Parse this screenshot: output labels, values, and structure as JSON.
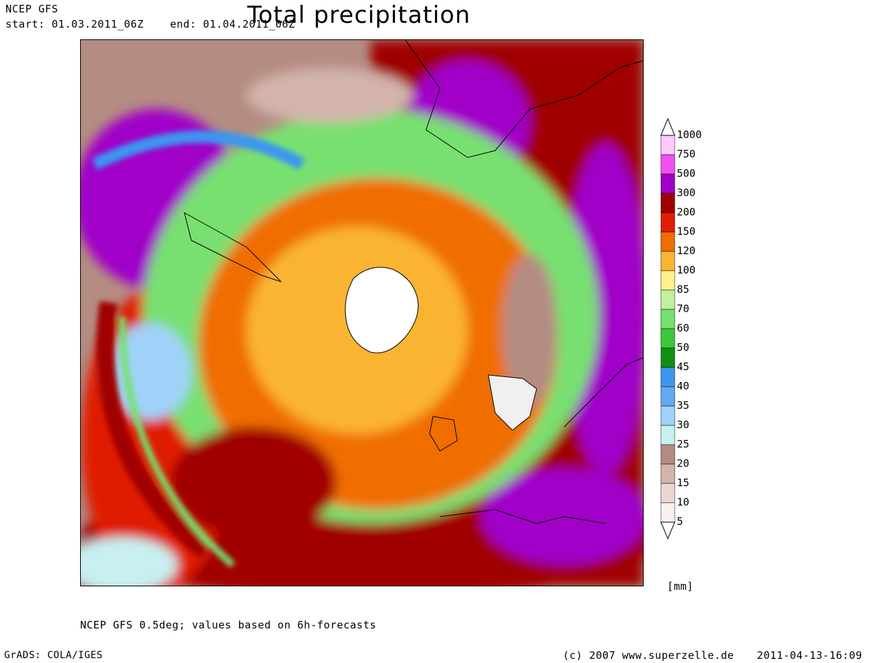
{
  "header": {
    "model": "NCEP GFS",
    "period": "start: 01.03.2011_06Z    end: 01.04.2011_06Z",
    "title": "Total precipitation"
  },
  "legend": {
    "unit": "[mm]",
    "levels": [
      "1000",
      "750",
      "500",
      "300",
      "200",
      "150",
      "120",
      "100",
      "85",
      "70",
      "60",
      "50",
      "45",
      "40",
      "35",
      "30",
      "25",
      "20",
      "15",
      "10",
      "5"
    ],
    "colors": [
      "#ffc8ff",
      "#f050f0",
      "#a000c8",
      "#a00000",
      "#e01e00",
      "#f06e00",
      "#fab432",
      "#fff08c",
      "#c0f0a0",
      "#78e070",
      "#3cc83c",
      "#109010",
      "#3c96f0",
      "#64aaf0",
      "#a0d2fa",
      "#c8f0f0",
      "#b48c82",
      "#d2b4aa",
      "#ebd7d2",
      "#faf0f0"
    ]
  },
  "footer": {
    "note": "NCEP GFS 0.5deg; values based on 6h-forecasts",
    "software": "GrADS: COLA/IGES",
    "copyright": "(c) 2007 www.superzelle.de",
    "timestamp": "2011-04-13-16:09"
  }
}
